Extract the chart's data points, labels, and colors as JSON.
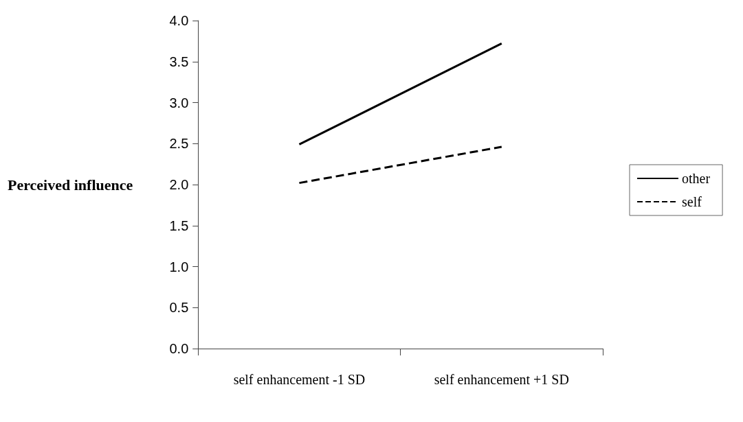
{
  "chart_data": {
    "type": "line",
    "ylabel": "Perceived influence",
    "categories": [
      "self enhancement -1 SD",
      "self enhancement +1 SD"
    ],
    "series": [
      {
        "name": "other",
        "color": "#000000",
        "values": [
          2.49,
          3.72
        ],
        "line_style": "solid"
      },
      {
        "name": "self",
        "color": "#000000",
        "values": [
          2.02,
          2.46
        ],
        "line_style": "dashed"
      }
    ],
    "ylim": [
      0,
      4
    ],
    "yticks": [
      {
        "value": 0,
        "label": "0.0"
      },
      0.5,
      {
        "value": 1,
        "label": "1.0"
      },
      1.5,
      {
        "value": 2,
        "label": "2.0"
      },
      2.5,
      {
        "value": 3,
        "label": "3.0"
      },
      3.5,
      {
        "value": 4,
        "label": "4.0"
      }
    ],
    "grid": false,
    "legend": "right",
    "marker": "none"
  }
}
